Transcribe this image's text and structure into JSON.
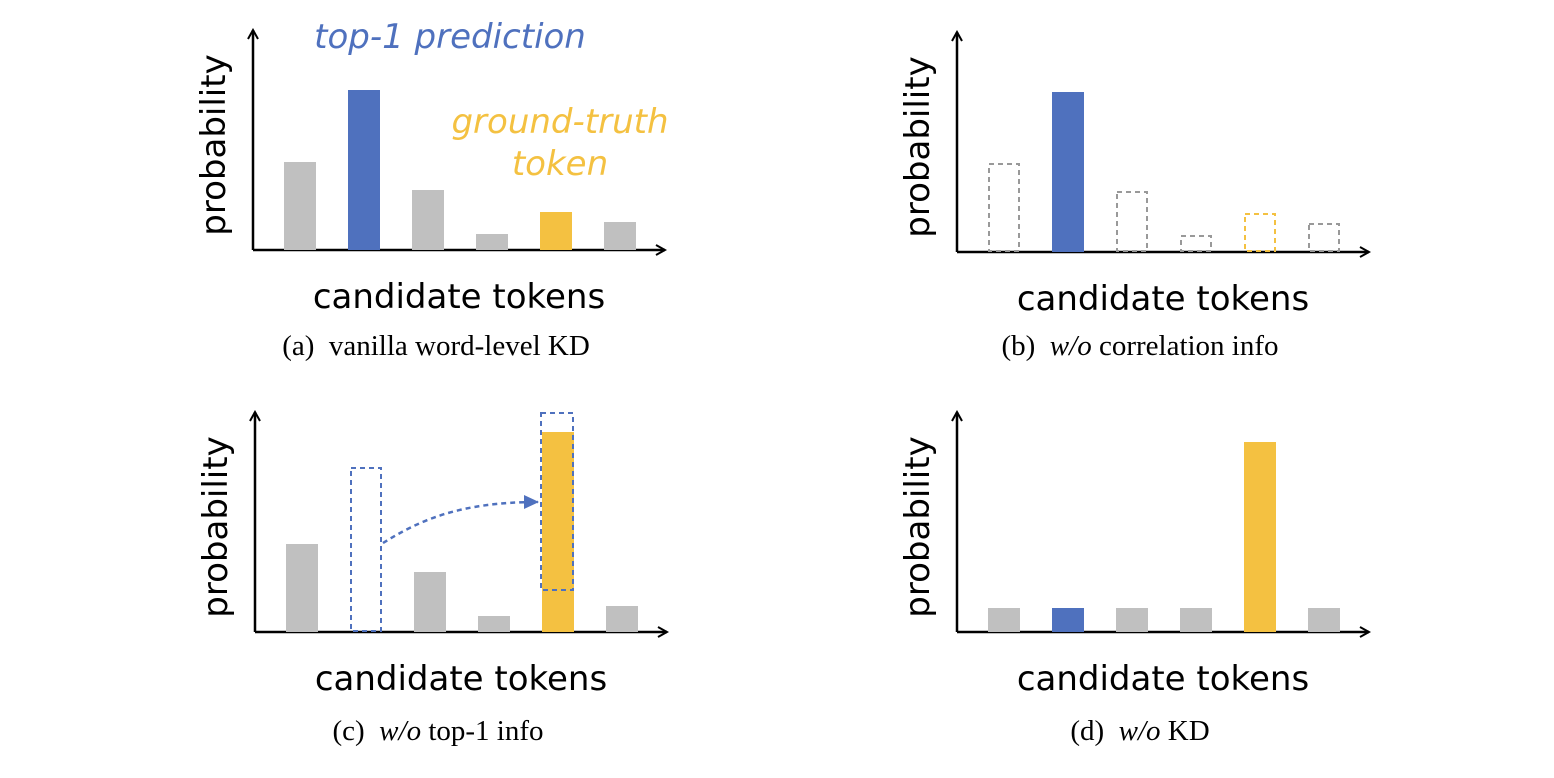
{
  "chart_data": [
    {
      "type": "bar",
      "ylabel": "probability",
      "xlabel": "candidate tokens",
      "caption": {
        "label": "(a)",
        "text": "vanilla word-level KD"
      },
      "ylim": [
        0,
        100
      ],
      "categories": [
        null,
        null,
        null,
        null,
        null,
        null
      ],
      "values": [
        44,
        80,
        30,
        8,
        19,
        14
      ],
      "colors": [
        "#c0c0c0",
        "#4f71be",
        "#c0c0c0",
        "#c0c0c0",
        "#f4c141",
        "#c0c0c0"
      ],
      "outline": [
        false,
        false,
        false,
        false,
        false,
        false
      ],
      "annotations": [
        {
          "lines": [
            "top-1 prediction"
          ],
          "color": "#4f71be"
        },
        {
          "lines": [
            "ground-truth",
            "token"
          ],
          "color": "#f4c141"
        }
      ]
    },
    {
      "type": "bar",
      "ylabel": "probability",
      "xlabel": "candidate tokens",
      "caption": {
        "label": "(b)",
        "italic": "w/o",
        "text": "correlation info"
      },
      "ylim": [
        0,
        100
      ],
      "categories": [
        null,
        null,
        null,
        null,
        null,
        null
      ],
      "values": [
        44,
        80,
        30,
        8,
        19,
        14
      ],
      "colors": [
        "#999999",
        "#4f71be",
        "#999999",
        "#999999",
        "#f4c141",
        "#999999"
      ],
      "outline": [
        true,
        false,
        true,
        true,
        true,
        true
      ]
    },
    {
      "type": "bar",
      "ylabel": "probability",
      "xlabel": "candidate tokens",
      "caption": {
        "label": "(c)",
        "italic": "w/o",
        "text": "top-1 info"
      },
      "ylim": [
        0,
        100
      ],
      "categories": [
        null,
        null,
        null,
        null,
        null,
        null
      ],
      "values": [
        44,
        82,
        30,
        8,
        100,
        13
      ],
      "colors": [
        "#c0c0c0",
        "#4f71be",
        "#c0c0c0",
        "#c0c0c0",
        "#f4c141",
        "#c0c0c0"
      ],
      "outline": [
        false,
        true,
        false,
        false,
        false,
        false
      ]
    },
    {
      "type": "bar",
      "ylabel": "probability",
      "xlabel": "candidate tokens",
      "caption": {
        "label": "(d)",
        "italic": "w/o",
        "text": "KD"
      },
      "ylim": [
        0,
        100
      ],
      "categories": [
        null,
        null,
        null,
        null,
        null,
        null
      ],
      "values": [
        12,
        12,
        12,
        12,
        95,
        12
      ],
      "colors": [
        "#c0c0c0",
        "#4f71be",
        "#c0c0c0",
        "#c0c0c0",
        "#f4c141",
        "#c0c0c0"
      ],
      "outline": [
        false,
        false,
        false,
        false,
        false,
        false
      ]
    }
  ]
}
